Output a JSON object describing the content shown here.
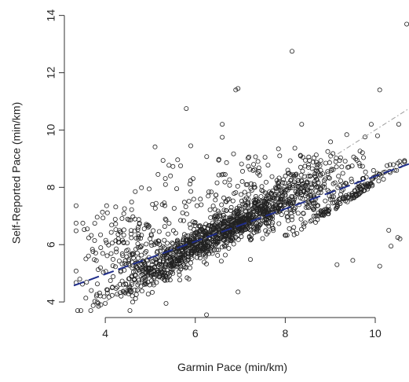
{
  "chart_data": {
    "type": "scatter",
    "xlabel": "Garmin Pace (min/km)",
    "ylabel": "Self-Reported Pace (min/km)",
    "xlim": [
      3.3,
      10.75
    ],
    "ylim": [
      3.4,
      14.1
    ],
    "x_ticks": [
      4,
      6,
      8,
      10
    ],
    "y_ticks": [
      4,
      6,
      8,
      10,
      12,
      14
    ],
    "x_tick_labels": [
      "4",
      "6",
      "8",
      "10"
    ],
    "y_tick_labels": [
      "4",
      "6",
      "8",
      "10",
      "12",
      "14"
    ],
    "grid": false,
    "legend": "none",
    "marker": "open-circle",
    "approx_point_count": 2000,
    "regression_line": {
      "intercept": 2.69,
      "slope": 0.57,
      "color": "#1f2d8a",
      "style": "dashed"
    },
    "identity_line": {
      "intercept": 0,
      "slope": 1,
      "color": "#9a9a9a",
      "style": "dash-dot"
    },
    "notable_points": [
      {
        "x": 10.7,
        "y": 13.7
      },
      {
        "x": 8.15,
        "y": 12.75
      },
      {
        "x": 10.1,
        "y": 11.4
      },
      {
        "x": 6.95,
        "y": 11.45
      },
      {
        "x": 6.9,
        "y": 11.4
      },
      {
        "x": 5.8,
        "y": 10.75
      },
      {
        "x": 6.6,
        "y": 9.75
      },
      {
        "x": 5.9,
        "y": 9.45
      },
      {
        "x": 10.05,
        "y": 9.8
      },
      {
        "x": 6.25,
        "y": 3.55
      },
      {
        "x": 5.35,
        "y": 3.95
      },
      {
        "x": 6.95,
        "y": 4.35
      },
      {
        "x": 3.35,
        "y": 6.75
      },
      {
        "x": 3.5,
        "y": 6.75
      },
      {
        "x": 3.6,
        "y": 6.55
      },
      {
        "x": 10.3,
        "y": 6.5
      },
      {
        "x": 10.5,
        "y": 6.25
      },
      {
        "x": 10.55,
        "y": 6.2
      },
      {
        "x": 10.35,
        "y": 5.95
      },
      {
        "x": 9.15,
        "y": 5.3
      },
      {
        "x": 9.5,
        "y": 5.45
      },
      {
        "x": 10.1,
        "y": 5.25
      },
      {
        "x": 3.85,
        "y": 3.85
      },
      {
        "x": 3.9,
        "y": 3.9
      },
      {
        "x": 4.0,
        "y": 3.95
      },
      {
        "x": 5.45,
        "y": 8.4
      },
      {
        "x": 7.55,
        "y": 9.05
      }
    ],
    "clusters": [
      {
        "cx": 6.0,
        "cy": 6.0,
        "spread_x": 0.9,
        "spread_y": 0.55,
        "n": 750,
        "along_identity": true
      },
      {
        "cx": 7.3,
        "cy": 7.0,
        "spread_x": 0.75,
        "spread_y": 0.6,
        "n": 450,
        "along_identity": true
      },
      {
        "cx": 8.6,
        "cy": 7.6,
        "spread_x": 0.7,
        "spread_y": 1.0,
        "n": 260,
        "along_identity": false
      },
      {
        "cx": 4.6,
        "cy": 5.9,
        "spread_x": 0.6,
        "spread_y": 0.8,
        "n": 200,
        "along_identity": false
      },
      {
        "cx": 9.6,
        "cy": 7.2,
        "spread_x": 0.5,
        "spread_y": 1.3,
        "n": 90,
        "along_identity": false
      },
      {
        "cx": 6.8,
        "cy": 8.0,
        "spread_x": 0.9,
        "spread_y": 0.8,
        "n": 120,
        "along_identity": false
      }
    ]
  }
}
